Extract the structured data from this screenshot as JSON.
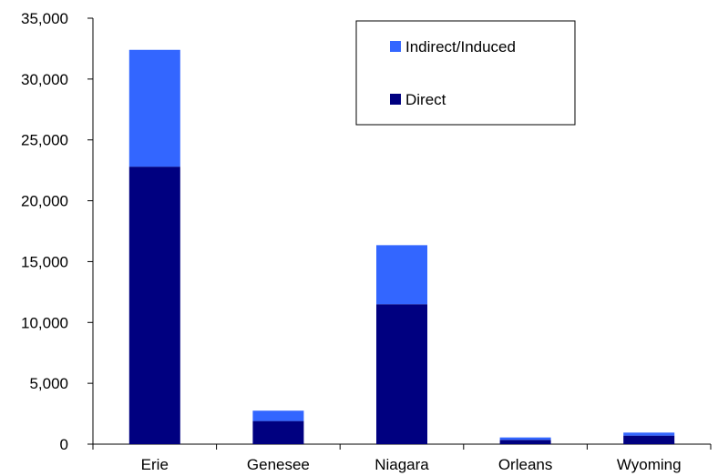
{
  "chart_data": {
    "type": "bar",
    "stacked": true,
    "title": "",
    "xlabel": "",
    "ylabel": "",
    "categories": [
      "Erie",
      "Genesee",
      "Niagara",
      "Orleans",
      "Wyoming"
    ],
    "series": [
      {
        "name": "Direct",
        "color": "#000080",
        "values": [
          22800,
          1900,
          11500,
          350,
          700
        ]
      },
      {
        "name": "Indirect/Induced",
        "color": "#3366ff",
        "values": [
          9600,
          850,
          4850,
          200,
          250
        ]
      }
    ],
    "ylim": [
      0,
      35000
    ],
    "yticks": [
      0,
      5000,
      10000,
      15000,
      20000,
      25000,
      30000,
      35000
    ],
    "ytick_labels": [
      "0",
      "5,000",
      "10,000",
      "15,000",
      "20,000",
      "25,000",
      "30,000",
      "35,000"
    ],
    "grid": false,
    "legend": {
      "position": "top-right-inside",
      "entries": [
        {
          "label": "Indirect/Induced",
          "color": "#3366ff"
        },
        {
          "label": "Direct",
          "color": "#000080"
        }
      ]
    }
  }
}
